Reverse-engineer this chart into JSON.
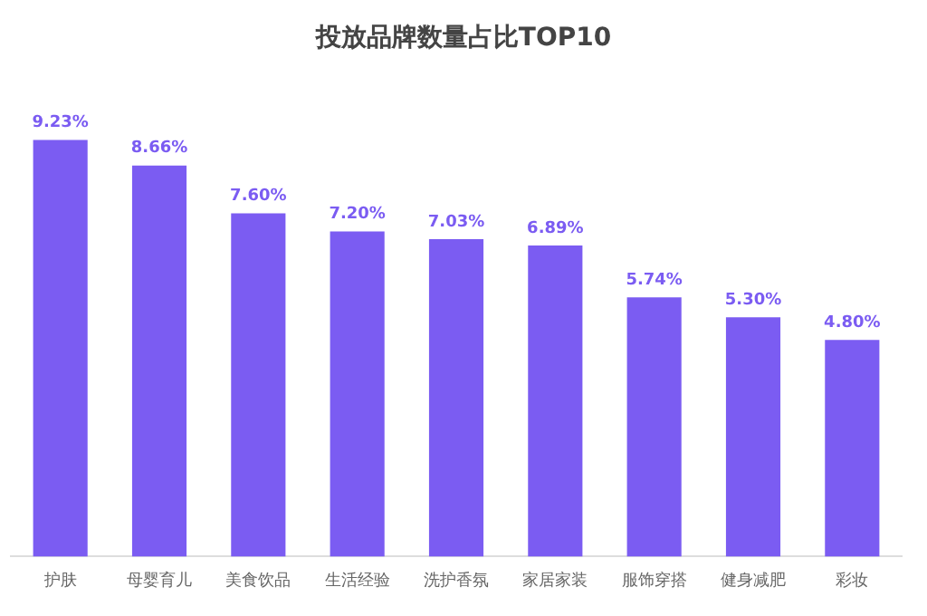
{
  "chart_data": {
    "type": "bar",
    "title": "投放品牌数量占比TOP10",
    "categories": [
      "护肤",
      "母婴育儿",
      "美食饮品",
      "生活经验",
      "洗护香氛",
      "家居家装",
      "服饰穿搭",
      "健身减肥",
      "彩妆"
    ],
    "values": [
      9.23,
      8.66,
      7.6,
      7.2,
      7.03,
      6.89,
      5.74,
      5.3,
      4.8
    ],
    "value_labels": [
      "9.23%",
      "8.66%",
      "7.60%",
      "7.20%",
      "7.03%",
      "6.89%",
      "5.74%",
      "5.30%",
      "4.80%"
    ],
    "color": "#7b5cf2",
    "grid": false,
    "legend": false
  }
}
